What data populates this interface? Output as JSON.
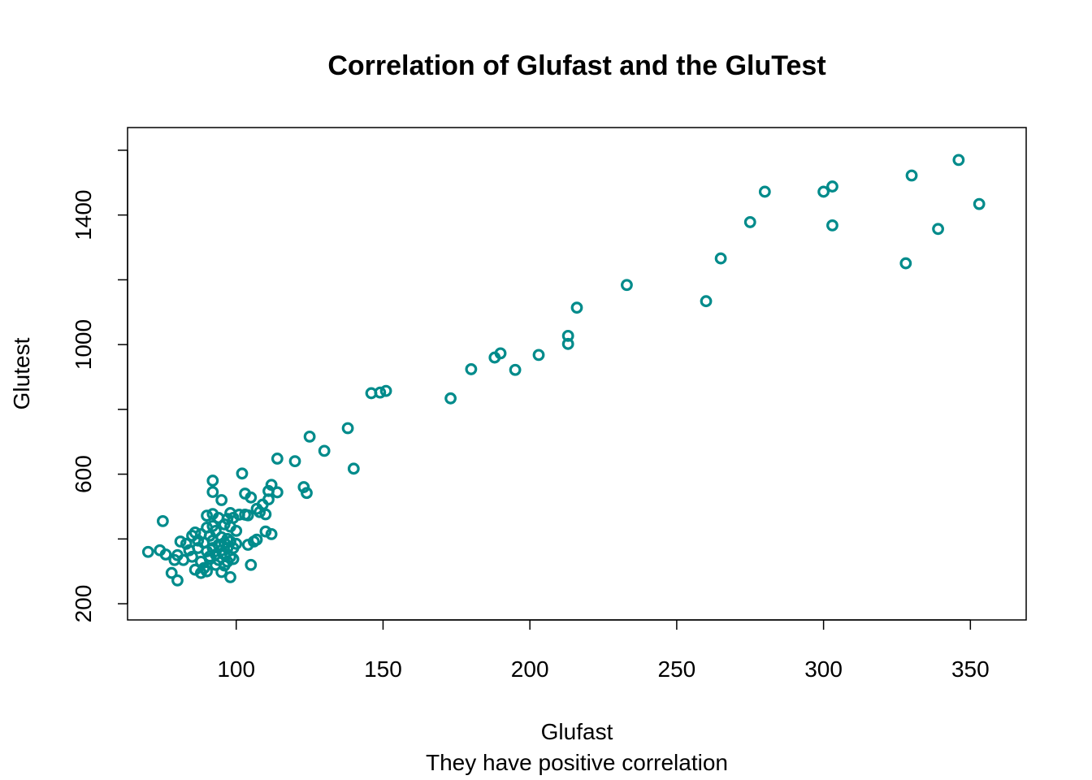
{
  "chart_data": {
    "type": "scatter",
    "title": "Correlation of Glufast and the GluTest",
    "xlabel": "Glufast",
    "ylabel": "Glutest",
    "subtitle": "They have positive correlation",
    "xlim": [
      63,
      369
    ],
    "ylim": [
      150,
      1670
    ],
    "xticks": [
      100,
      150,
      200,
      250,
      300,
      350
    ],
    "yticks": [
      200,
      600,
      1000,
      1400
    ],
    "yticks_minor": [
      400,
      800,
      1200,
      1600
    ],
    "grid": false,
    "legend": "none",
    "marker": "open-circle",
    "color": "#008B8B",
    "series": [
      {
        "points": [
          [
            70,
            360
          ],
          [
            74,
            365
          ],
          [
            76,
            352
          ],
          [
            75,
            455
          ],
          [
            78,
            295
          ],
          [
            79,
            335
          ],
          [
            80,
            350
          ],
          [
            80,
            272
          ],
          [
            81,
            392
          ],
          [
            82,
            335
          ],
          [
            83,
            385
          ],
          [
            84,
            365
          ],
          [
            85,
            410
          ],
          [
            85,
            345
          ],
          [
            86,
            305
          ],
          [
            86,
            420
          ],
          [
            87,
            395
          ],
          [
            87,
            372
          ],
          [
            88,
            330
          ],
          [
            88,
            415
          ],
          [
            88,
            295
          ],
          [
            89,
            310
          ],
          [
            89,
            388
          ],
          [
            90,
            362
          ],
          [
            90,
            472
          ],
          [
            90,
            435
          ],
          [
            90,
            300
          ],
          [
            91,
            346
          ],
          [
            91,
            410
          ],
          [
            91,
            338
          ],
          [
            92,
            580
          ],
          [
            92,
            545
          ],
          [
            92,
            477
          ],
          [
            92,
            440
          ],
          [
            92,
            395
          ],
          [
            92,
            372
          ],
          [
            93,
            352
          ],
          [
            93,
            320
          ],
          [
            93,
            425
          ],
          [
            94,
            382
          ],
          [
            94,
            465
          ],
          [
            94,
            335
          ],
          [
            95,
            298
          ],
          [
            95,
            520
          ],
          [
            95,
            405
          ],
          [
            95,
            365
          ],
          [
            96,
            352
          ],
          [
            96,
            445
          ],
          [
            96,
            388
          ],
          [
            96,
            318
          ],
          [
            97,
            372
          ],
          [
            97,
            330
          ],
          [
            97,
            462
          ],
          [
            97,
            400
          ],
          [
            98,
            282
          ],
          [
            98,
            480
          ],
          [
            98,
            438
          ],
          [
            98,
            392
          ],
          [
            98,
            345
          ],
          [
            99,
            372
          ],
          [
            99,
            338
          ],
          [
            99,
            465
          ],
          [
            100,
            425
          ],
          [
            100,
            385
          ],
          [
            101,
            475
          ],
          [
            102,
            602
          ],
          [
            103,
            540
          ],
          [
            103,
            475
          ],
          [
            104,
            382
          ],
          [
            104,
            473
          ],
          [
            105,
            528
          ],
          [
            105,
            320
          ],
          [
            106,
            392
          ],
          [
            107,
            398
          ],
          [
            107,
            493
          ],
          [
            108,
            483
          ],
          [
            109,
            506
          ],
          [
            110,
            476
          ],
          [
            110,
            423
          ],
          [
            111,
            548
          ],
          [
            111,
            522
          ],
          [
            112,
            567
          ],
          [
            112,
            415
          ],
          [
            114,
            544
          ],
          [
            114,
            648
          ],
          [
            120,
            640
          ],
          [
            123,
            560
          ],
          [
            124,
            542
          ],
          [
            125,
            716
          ],
          [
            130,
            672
          ],
          [
            138,
            742
          ],
          [
            140,
            617
          ],
          [
            146,
            850
          ],
          [
            149,
            852
          ],
          [
            151,
            857
          ],
          [
            173,
            834
          ],
          [
            180,
            924
          ],
          [
            188,
            960
          ],
          [
            190,
            973
          ],
          [
            195,
            922
          ],
          [
            203,
            968
          ],
          [
            213,
            1027
          ],
          [
            213,
            1002
          ],
          [
            216,
            1114
          ],
          [
            233,
            1184
          ],
          [
            260,
            1134
          ],
          [
            265,
            1266
          ],
          [
            275,
            1378
          ],
          [
            280,
            1472
          ],
          [
            300,
            1472
          ],
          [
            303,
            1488
          ],
          [
            303,
            1368
          ],
          [
            328,
            1251
          ],
          [
            330,
            1522
          ],
          [
            339,
            1357
          ],
          [
            346,
            1570
          ],
          [
            353,
            1434
          ]
        ]
      }
    ]
  }
}
